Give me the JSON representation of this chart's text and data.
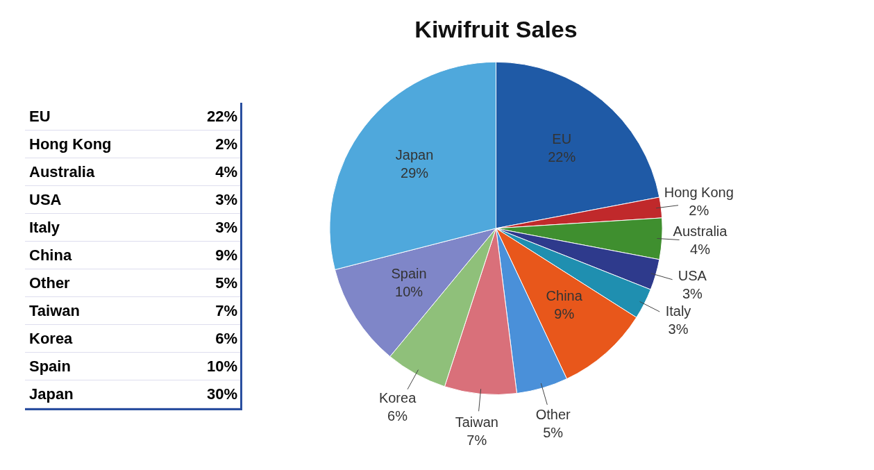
{
  "chart_data": [
    {
      "type": "other",
      "categories": [
        "EU",
        "Hong Kong",
        "Australia",
        "USA",
        "Italy",
        "China",
        "Other",
        "Taiwan",
        "Korea",
        "Spain",
        "Japan"
      ],
      "value_labels": [
        "22%",
        "2%",
        "4%",
        "3%",
        "3%",
        "9%",
        "5%",
        "7%",
        "6%",
        "10%",
        "30%"
      ]
    },
    {
      "type": "pie",
      "title": "Kiwifruit Sales",
      "categories": [
        "EU",
        "Hong Kong",
        "Australia",
        "USA",
        "Italy",
        "China",
        "Other",
        "Taiwan",
        "Korea",
        "Spain",
        "Japan"
      ],
      "values": [
        22,
        2,
        4,
        3,
        3,
        9,
        5,
        7,
        6,
        10,
        29
      ],
      "value_labels": [
        "22%",
        "2%",
        "4%",
        "3%",
        "3%",
        "9%",
        "5%",
        "7%",
        "6%",
        "10%",
        "29%"
      ],
      "colors": [
        "#1f5aa6",
        "#c0292b",
        "#3f8f2f",
        "#2e3a8c",
        "#1f8fb0",
        "#e8571b",
        "#4a90d9",
        "#d9707a",
        "#8fc07a",
        "#7f86c8",
        "#4fa8dc"
      ],
      "legend": false
    }
  ]
}
